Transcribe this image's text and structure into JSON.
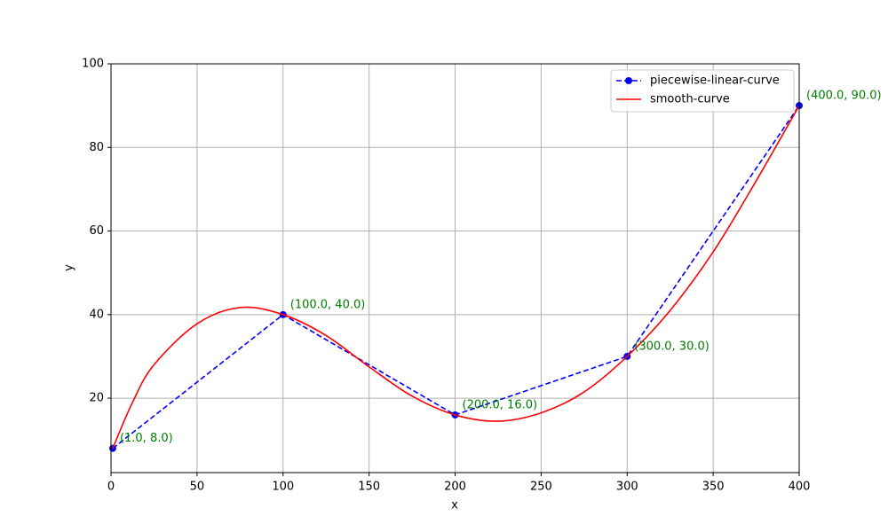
{
  "chart_data": {
    "type": "line",
    "x_label": "x",
    "y_label": "y",
    "xlim": [
      0,
      400
    ],
    "xticks": [
      0,
      50,
      100,
      150,
      200,
      250,
      300,
      350,
      400
    ],
    "ylim": [
      2.2,
      100
    ],
    "yticks": [
      20,
      40,
      60,
      80,
      100
    ],
    "grid": true,
    "legend": "upper right",
    "series": [
      {
        "name": "piecewise-linear-curve",
        "color": "#0000ff",
        "style": "dashed",
        "marker": true,
        "x": [
          1,
          100,
          200,
          300,
          400
        ],
        "values": [
          8,
          40,
          16,
          30,
          90
        ]
      },
      {
        "name": "smooth-curve",
        "color": "#ff0000",
        "style": "solid",
        "marker": false,
        "x": [
          1,
          12.5,
          25,
          50,
          75,
          100,
          125,
          150,
          175,
          200,
          225,
          250,
          275,
          300,
          325,
          350,
          375,
          400
        ],
        "values": [
          8,
          19,
          28,
          37.8,
          41.7,
          40,
          35,
          27.5,
          20.5,
          16,
          14.5,
          16.5,
          21.5,
          30,
          41,
          55,
          72,
          90
        ]
      }
    ],
    "annotations": [
      {
        "label": "(1.0, 8.0)",
        "x": 1,
        "y": 8,
        "color": "#008000"
      },
      {
        "label": "(100.0, 40.0)",
        "x": 100,
        "y": 40,
        "color": "#008000"
      },
      {
        "label": "(200.0, 16.0)",
        "x": 200,
        "y": 16,
        "color": "#008000"
      },
      {
        "label": "(300.0, 30.0)",
        "x": 300,
        "y": 30,
        "color": "#008000"
      },
      {
        "label": "(400.0, 90.0)",
        "x": 400,
        "y": 90,
        "color": "#008000"
      }
    ]
  }
}
